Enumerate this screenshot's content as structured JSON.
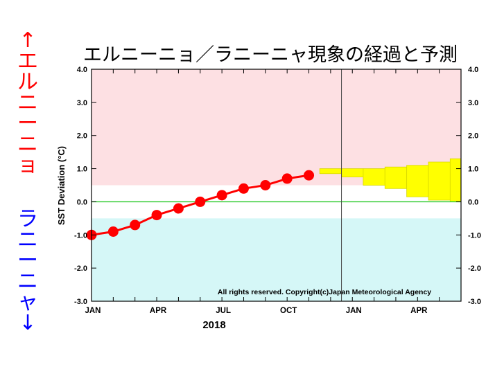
{
  "chart_data": {
    "type": "line",
    "title": "エルニーニョ／ラニーニャ現象の経過と予測",
    "ylabel": "SST Deviation (°C)",
    "xlabel": "2018",
    "ylim": [
      -3.0,
      4.0
    ],
    "xlim": [
      0,
      17
    ],
    "yticks": [
      "4.0",
      "3.0",
      "2.0",
      "1.0",
      "0.0",
      "-1.0",
      "-2.0",
      "-3.0"
    ],
    "yticks_right": [
      "4.0",
      "3.0",
      "2.0",
      "1.0",
      "0.0",
      "-1.0",
      "-2.0",
      "-3.0"
    ],
    "month_labels": [
      {
        "x": 0,
        "label": "JAN"
      },
      {
        "x": 3,
        "label": "APR"
      },
      {
        "x": 6,
        "label": "JUL"
      },
      {
        "x": 9,
        "label": "OCT"
      },
      {
        "x": 12,
        "label": "JAN"
      },
      {
        "x": 15,
        "label": "APR"
      }
    ],
    "forecast_start_x": 11.5,
    "el_nino_threshold": 0.5,
    "la_nina_threshold": -0.5,
    "reference_line": 0.0,
    "copyright": "All rights reserved. Copyright(c)Japan Meteorological Agency",
    "series": [
      {
        "values": [
          {
            "x": 0,
            "y": -1.0
          },
          {
            "x": 1,
            "y": -0.9
          },
          {
            "x": 2,
            "y": -0.7
          },
          {
            "x": 3,
            "y": -0.4
          },
          {
            "x": 4,
            "y": -0.2
          },
          {
            "x": 5,
            "y": 0.0
          },
          {
            "x": 6,
            "y": 0.2
          },
          {
            "x": 7,
            "y": 0.4
          },
          {
            "x": 8,
            "y": 0.5
          },
          {
            "x": 9,
            "y": 0.7
          },
          {
            "x": 10,
            "y": 0.8
          }
        ]
      }
    ],
    "forecast_bands": [
      {
        "x0": 10.5,
        "x1": 11.5,
        "low": 0.85,
        "high": 1.0
      },
      {
        "x0": 11.5,
        "x1": 12.5,
        "low": 0.75,
        "high": 1.0
      },
      {
        "x0": 12.5,
        "x1": 13.5,
        "low": 0.5,
        "high": 1.0
      },
      {
        "x0": 13.5,
        "x1": 14.5,
        "low": 0.4,
        "high": 1.05
      },
      {
        "x0": 14.5,
        "x1": 15.5,
        "low": 0.15,
        "high": 1.1
      },
      {
        "x0": 15.5,
        "x1": 16.5,
        "low": 0.05,
        "high": 1.2
      },
      {
        "x0": 16.5,
        "x1": 17.0,
        "low": 0.0,
        "high": 1.3
      }
    ],
    "colors": {
      "el_nino_zone": "#fde0e3",
      "la_nina_zone": "#d5f7f7",
      "observed": "#ff0000",
      "forecast": "#ffff00",
      "zero_line": "#33cc33"
    }
  },
  "side_labels": {
    "el_nino": [
      "↑",
      "エ",
      "ル",
      "ニ",
      "ー",
      "ニ",
      "ョ"
    ],
    "la_nina": [
      "ラ",
      "ニ",
      "ー",
      "ニ",
      "ャ",
      "↓"
    ],
    "el_nino_color": "#ff0000",
    "la_nina_color": "#0000ff"
  }
}
